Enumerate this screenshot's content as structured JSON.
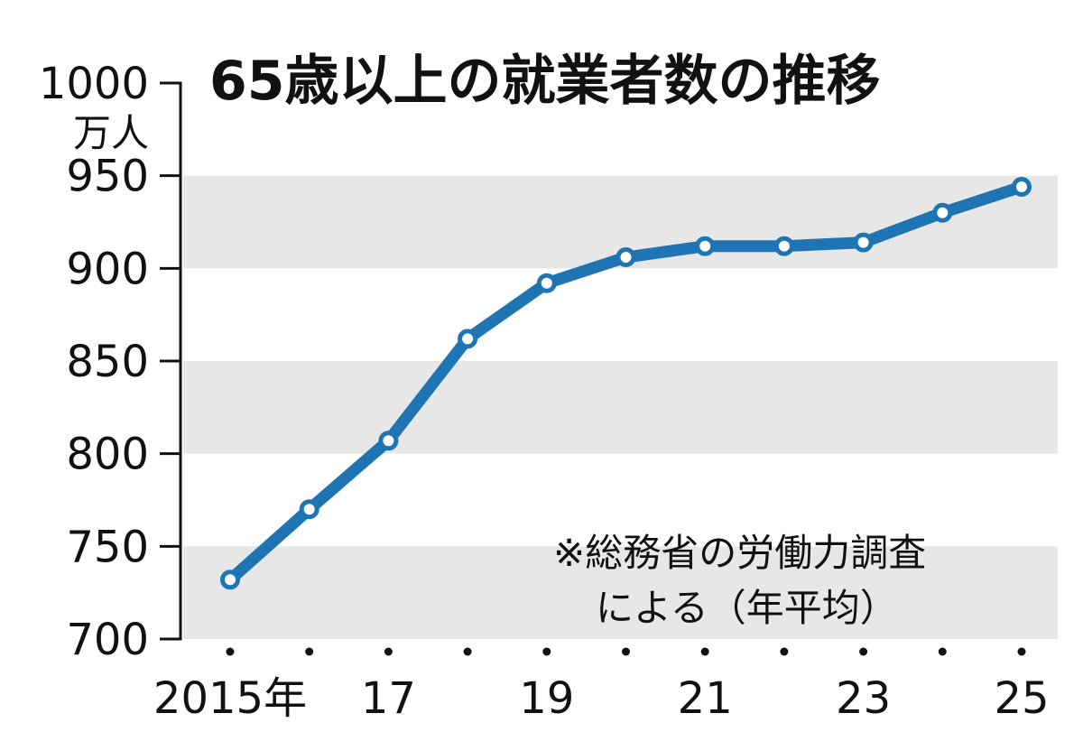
{
  "chart_data": {
    "type": "line",
    "title": "65歳以上の就業者数の推移",
    "ylabel_unit": "万人",
    "note_lines": [
      "※総務省の労働力調査",
      "による（年平均）"
    ],
    "x": [
      2015,
      2016,
      2017,
      2018,
      2019,
      2020,
      2021,
      2022,
      2023,
      2024,
      2025
    ],
    "x_tick_labels": [
      "2015年",
      "",
      "17",
      "",
      "19",
      "",
      "21",
      "",
      "23",
      "",
      "25"
    ],
    "y_ticks": [
      "700",
      "750",
      "800",
      "850",
      "900",
      "950",
      "1000"
    ],
    "ylim": [
      700,
      1000
    ],
    "series": [
      {
        "values": [
          732,
          770,
          807,
          862,
          892,
          906,
          912,
          912,
          914,
          930,
          944
        ]
      }
    ],
    "colors": {
      "line": "#1f75b4",
      "band": "#e7e7e7"
    },
    "grid": "alternating horizontal bands",
    "legend": "none"
  }
}
